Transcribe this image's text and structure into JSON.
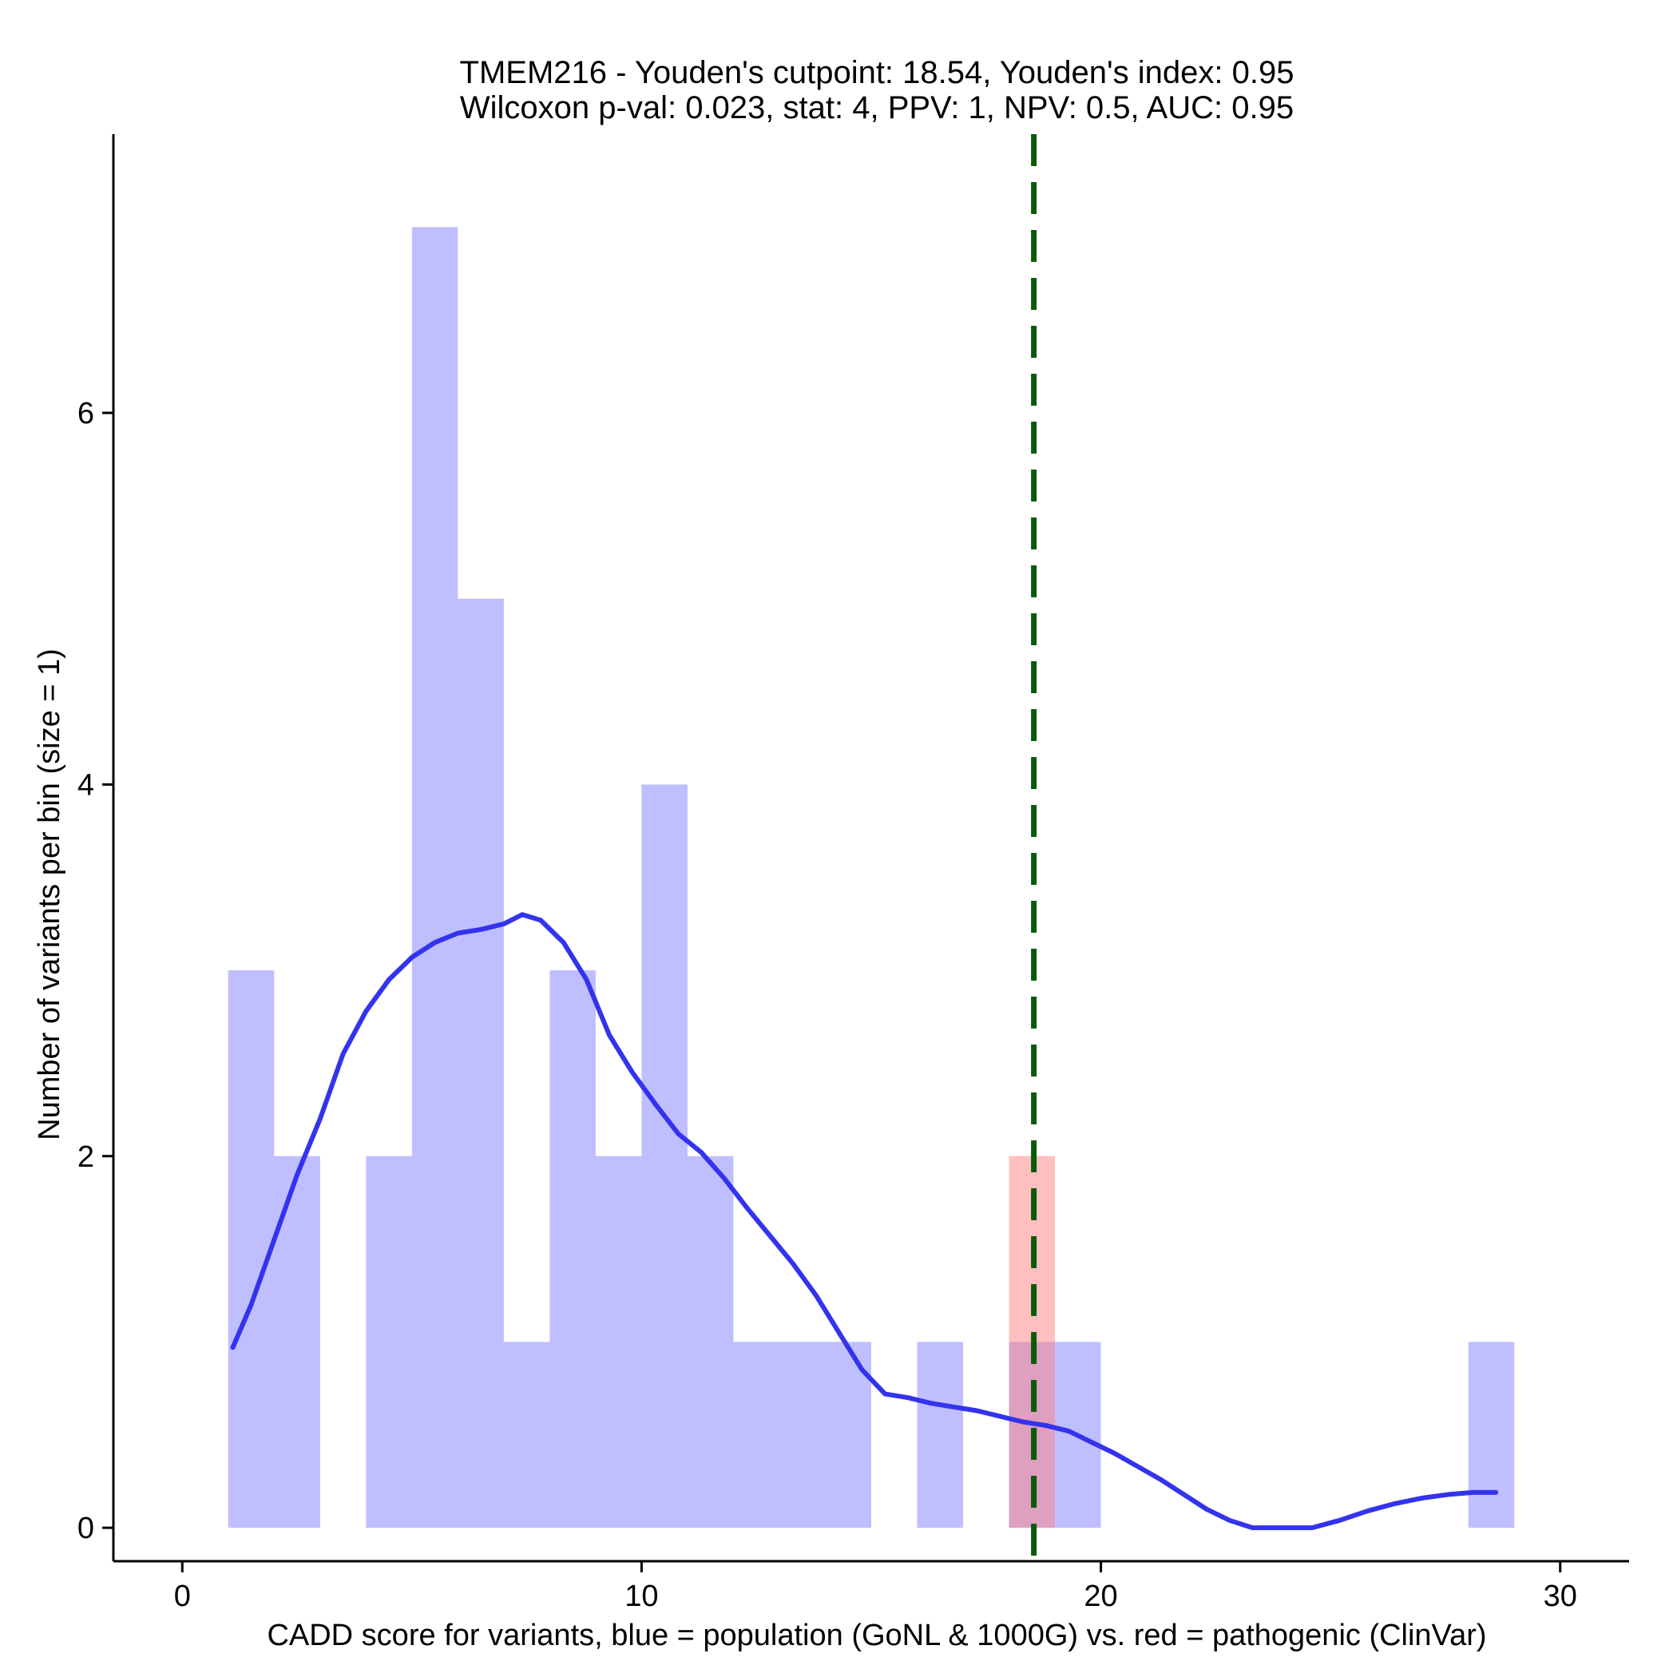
{
  "chart_data": {
    "type": "histogram",
    "title_line1": "TMEM216 - Youden's cutpoint: 18.54, Youden's index: 0.95",
    "title_line2": "Wilcoxon p-val: 0.023, stat: 4, PPV: 1, NPV: 0.5, AUC: 0.95",
    "xlabel": "CADD score for variants, blue = population (GoNL & 1000G) vs. red = pathogenic (ClinVar)",
    "ylabel": "Number of variants per bin (size = 1)",
    "xlim": [
      -1.5,
      31.5
    ],
    "ylim": [
      -0.18,
      7.5
    ],
    "x_ticks": [
      0,
      10,
      20,
      30
    ],
    "y_ticks": [
      0,
      2,
      4,
      6
    ],
    "bin_size": 1,
    "cutpoint": 18.54,
    "colors": {
      "population": "#7f7fff",
      "pathogenic": "#ff7f7f",
      "density": "#3333ee",
      "cutpoint": "#0b5a0b"
    },
    "series": [
      {
        "name": "population",
        "bins": [
          {
            "x0": 1,
            "count": 3
          },
          {
            "x0": 2,
            "count": 2
          },
          {
            "x0": 4,
            "count": 2
          },
          {
            "x0": 5,
            "count": 7
          },
          {
            "x0": 6,
            "count": 5
          },
          {
            "x0": 7,
            "count": 1
          },
          {
            "x0": 8,
            "count": 3
          },
          {
            "x0": 9,
            "count": 2
          },
          {
            "x0": 10,
            "count": 4
          },
          {
            "x0": 11,
            "count": 2
          },
          {
            "x0": 12,
            "count": 1
          },
          {
            "x0": 13,
            "count": 1
          },
          {
            "x0": 14,
            "count": 1
          },
          {
            "x0": 16,
            "count": 1
          },
          {
            "x0": 18,
            "count": 1
          },
          {
            "x0": 19,
            "count": 1
          },
          {
            "x0": 28,
            "count": 1
          }
        ]
      },
      {
        "name": "pathogenic",
        "bins": [
          {
            "x0": 18,
            "count": 2
          }
        ]
      }
    ],
    "density_curve": [
      [
        1.1,
        0.97
      ],
      [
        1.5,
        1.2
      ],
      [
        2.0,
        1.55
      ],
      [
        2.5,
        1.9
      ],
      [
        3.0,
        2.2
      ],
      [
        3.5,
        2.55
      ],
      [
        4.0,
        2.78
      ],
      [
        4.5,
        2.95
      ],
      [
        5.0,
        3.07
      ],
      [
        5.5,
        3.15
      ],
      [
        6.0,
        3.2
      ],
      [
        6.5,
        3.22
      ],
      [
        7.0,
        3.25
      ],
      [
        7.4,
        3.3
      ],
      [
        7.8,
        3.27
      ],
      [
        8.3,
        3.15
      ],
      [
        8.8,
        2.95
      ],
      [
        9.3,
        2.65
      ],
      [
        9.8,
        2.45
      ],
      [
        10.3,
        2.28
      ],
      [
        10.8,
        2.12
      ],
      [
        11.3,
        2.02
      ],
      [
        11.8,
        1.88
      ],
      [
        12.3,
        1.72
      ],
      [
        12.8,
        1.57
      ],
      [
        13.3,
        1.42
      ],
      [
        13.8,
        1.25
      ],
      [
        14.3,
        1.05
      ],
      [
        14.8,
        0.85
      ],
      [
        15.3,
        0.72
      ],
      [
        15.8,
        0.7
      ],
      [
        16.3,
        0.67
      ],
      [
        16.8,
        0.65
      ],
      [
        17.3,
        0.63
      ],
      [
        17.8,
        0.6
      ],
      [
        18.3,
        0.57
      ],
      [
        18.8,
        0.55
      ],
      [
        19.3,
        0.52
      ],
      [
        19.8,
        0.46
      ],
      [
        20.3,
        0.4
      ],
      [
        20.8,
        0.33
      ],
      [
        21.3,
        0.26
      ],
      [
        21.8,
        0.18
      ],
      [
        22.3,
        0.1
      ],
      [
        22.8,
        0.04
      ],
      [
        23.3,
        0.0
      ],
      [
        24.0,
        0.0
      ],
      [
        24.6,
        0.0
      ],
      [
        25.2,
        0.04
      ],
      [
        25.8,
        0.09
      ],
      [
        26.4,
        0.13
      ],
      [
        27.0,
        0.16
      ],
      [
        27.6,
        0.18
      ],
      [
        28.1,
        0.19
      ],
      [
        28.6,
        0.19
      ]
    ]
  }
}
